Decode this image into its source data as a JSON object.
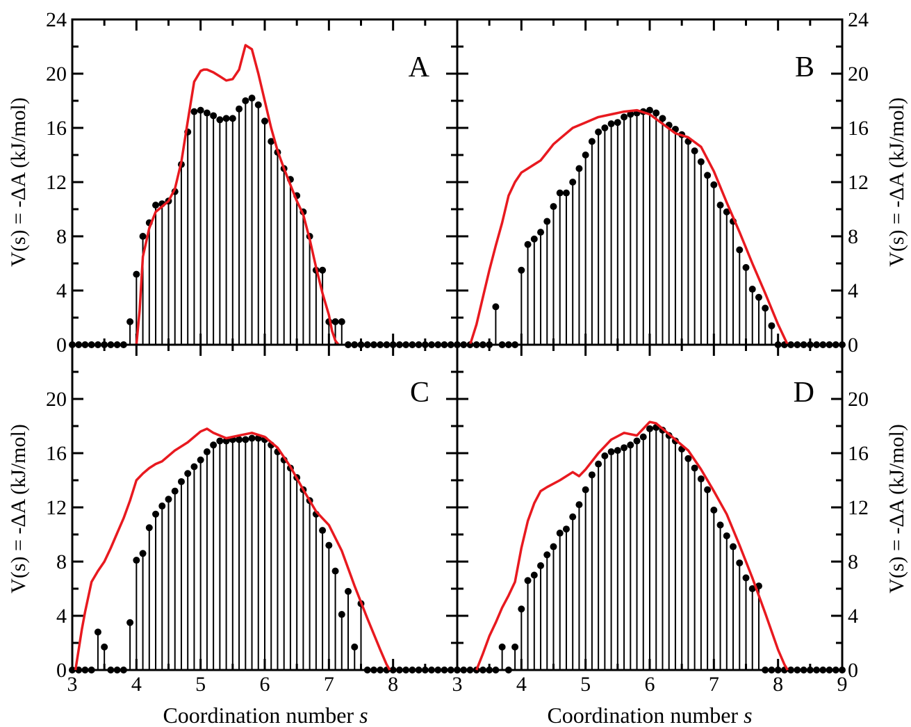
{
  "figure": {
    "y_axis_label": "V(s) = -ΔA (kJ/mol)",
    "x_axis_label_prefix": "Coordination number ",
    "x_axis_label_var": "s",
    "colors": {
      "curve": "#e8191f",
      "markers": "#000000"
    }
  },
  "chart_data": [
    {
      "type": "line",
      "panel": "A",
      "xlim": [
        3,
        9
      ],
      "ylim": [
        0,
        24
      ],
      "x_ticks": [],
      "y_ticks": [
        0,
        4,
        8,
        12,
        16,
        20,
        24
      ],
      "y_axis_side": "left",
      "series": [
        {
          "kind": "stem",
          "x": [
            3.0,
            3.1,
            3.2,
            3.3,
            3.4,
            3.5,
            3.6,
            3.7,
            3.8,
            3.9,
            4.0,
            4.1,
            4.2,
            4.3,
            4.4,
            4.5,
            4.6,
            4.7,
            4.8,
            4.9,
            5.0,
            5.1,
            5.2,
            5.3,
            5.4,
            5.5,
            5.6,
            5.7,
            5.8,
            5.9,
            6.0,
            6.1,
            6.2,
            6.3,
            6.4,
            6.5,
            6.6,
            6.7,
            6.8,
            6.9,
            7.0,
            7.1,
            7.2,
            7.3,
            7.4,
            7.5,
            7.6,
            7.7,
            7.8,
            7.9,
            8.0,
            8.1,
            8.2,
            8.3,
            8.4,
            8.5,
            8.6,
            8.7,
            8.8,
            8.9,
            9.0
          ],
          "y": [
            0,
            0,
            0,
            0,
            0,
            0,
            0,
            0,
            0,
            1.7,
            5.2,
            8.0,
            9.0,
            10.3,
            10.4,
            10.6,
            11.3,
            13.3,
            15.7,
            17.2,
            17.3,
            17.1,
            16.9,
            16.6,
            16.7,
            16.7,
            17.4,
            18.0,
            18.2,
            17.7,
            16.5,
            15.0,
            14.2,
            13.0,
            12.2,
            11.0,
            9.8,
            8.0,
            5.5,
            5.5,
            1.7,
            1.7,
            1.7,
            0,
            0,
            0,
            0,
            0,
            0,
            0,
            0,
            0,
            0,
            0,
            0,
            0,
            0,
            0,
            0,
            0,
            0
          ]
        },
        {
          "kind": "curve",
          "x": [
            4.0,
            4.05,
            4.1,
            4.2,
            4.3,
            4.4,
            4.5,
            4.6,
            4.7,
            4.8,
            4.9,
            5.0,
            5.05,
            5.1,
            5.2,
            5.3,
            5.4,
            5.5,
            5.6,
            5.7,
            5.8,
            5.9,
            6.0,
            6.1,
            6.2,
            6.3,
            6.4,
            6.5,
            6.6,
            6.7,
            6.8,
            6.9,
            7.0,
            7.05,
            7.1,
            7.15
          ],
          "y": [
            0,
            2.5,
            6.5,
            8.6,
            9.8,
            10.2,
            10.6,
            11.5,
            13.5,
            16.5,
            19.4,
            20.2,
            20.3,
            20.3,
            20.1,
            19.8,
            19.5,
            19.6,
            20.3,
            22.1,
            21.8,
            20.0,
            18.0,
            16.0,
            14.3,
            13.0,
            11.8,
            10.6,
            9.6,
            7.8,
            5.7,
            3.8,
            2.2,
            1.0,
            0.3,
            0
          ]
        }
      ]
    },
    {
      "type": "line",
      "panel": "B",
      "xlim": [
        3,
        9
      ],
      "ylim": [
        0,
        24
      ],
      "x_ticks": [],
      "y_ticks": [
        0,
        4,
        8,
        12,
        16,
        20,
        24
      ],
      "y_axis_side": "right",
      "series": [
        {
          "kind": "stem",
          "x": [
            3.0,
            3.1,
            3.2,
            3.3,
            3.4,
            3.5,
            3.6,
            3.7,
            3.8,
            3.9,
            4.0,
            4.1,
            4.2,
            4.3,
            4.4,
            4.5,
            4.6,
            4.7,
            4.8,
            4.9,
            5.0,
            5.1,
            5.2,
            5.3,
            5.4,
            5.5,
            5.6,
            5.7,
            5.8,
            5.9,
            6.0,
            6.1,
            6.2,
            6.3,
            6.4,
            6.5,
            6.6,
            6.7,
            6.8,
            6.9,
            7.0,
            7.1,
            7.2,
            7.3,
            7.4,
            7.5,
            7.6,
            7.7,
            7.8,
            7.9,
            8.0,
            8.1,
            8.2,
            8.3,
            8.4,
            8.5,
            8.6,
            8.7,
            8.8,
            8.9,
            9.0
          ],
          "y": [
            0,
            0,
            0,
            0,
            0,
            0,
            2.8,
            0,
            0,
            0,
            5.5,
            7.4,
            7.8,
            8.3,
            9.1,
            10.2,
            11.2,
            11.2,
            12.0,
            13.0,
            14.0,
            15.0,
            15.7,
            16.0,
            16.3,
            16.4,
            16.8,
            17.0,
            17.1,
            17.2,
            17.3,
            17.1,
            16.7,
            16.2,
            15.9,
            15.5,
            15.0,
            14.3,
            13.5,
            12.5,
            11.8,
            10.3,
            9.8,
            9.1,
            7.0,
            5.7,
            4.1,
            3.5,
            2.7,
            1.4,
            0,
            0,
            0,
            0,
            0,
            0,
            0,
            0,
            0,
            0,
            0
          ]
        },
        {
          "kind": "curve",
          "x": [
            3.2,
            3.3,
            3.4,
            3.5,
            3.6,
            3.7,
            3.8,
            3.9,
            4.0,
            4.1,
            4.2,
            4.3,
            4.4,
            4.5,
            4.6,
            4.8,
            5.0,
            5.2,
            5.4,
            5.6,
            5.8,
            6.0,
            6.2,
            6.4,
            6.6,
            6.8,
            7.0,
            7.2,
            7.4,
            7.6,
            7.8,
            8.0,
            8.1,
            8.15
          ],
          "y": [
            0,
            1.5,
            3.5,
            5.5,
            7.3,
            9.0,
            11.0,
            12.0,
            12.7,
            13.0,
            13.3,
            13.6,
            14.2,
            14.8,
            15.2,
            16.0,
            16.4,
            16.8,
            17.0,
            17.2,
            17.3,
            17.0,
            16.3,
            15.6,
            15.3,
            14.6,
            12.8,
            10.5,
            8.3,
            6.0,
            3.8,
            1.5,
            0.5,
            0
          ]
        }
      ]
    },
    {
      "type": "line",
      "panel": "C",
      "xlim": [
        3,
        9
      ],
      "ylim": [
        0,
        24
      ],
      "x_ticks": [
        3,
        4,
        5,
        6,
        7,
        8
      ],
      "y_ticks": [
        0,
        4,
        8,
        12,
        16,
        20
      ],
      "y_axis_side": "left",
      "series": [
        {
          "kind": "stem",
          "x": [
            3.0,
            3.1,
            3.2,
            3.3,
            3.4,
            3.5,
            3.6,
            3.7,
            3.8,
            3.9,
            4.0,
            4.1,
            4.2,
            4.3,
            4.4,
            4.5,
            4.6,
            4.7,
            4.8,
            4.9,
            5.0,
            5.1,
            5.2,
            5.3,
            5.4,
            5.5,
            5.6,
            5.7,
            5.8,
            5.9,
            6.0,
            6.1,
            6.2,
            6.3,
            6.4,
            6.5,
            6.6,
            6.7,
            6.8,
            6.9,
            7.0,
            7.1,
            7.2,
            7.3,
            7.4,
            7.5,
            7.6,
            7.7,
            7.8,
            7.9,
            8.0,
            8.1,
            8.2,
            8.3,
            8.4,
            8.5,
            8.6,
            8.7,
            8.8,
            8.9,
            9.0
          ],
          "y": [
            0,
            0,
            0,
            0,
            2.8,
            1.7,
            0,
            0,
            0,
            3.5,
            8.1,
            8.6,
            10.5,
            11.5,
            12.1,
            12.6,
            13.2,
            13.9,
            14.5,
            15.0,
            15.5,
            16.1,
            16.6,
            16.9,
            16.9,
            17.0,
            17.0,
            17.0,
            17.1,
            17.1,
            17.0,
            16.6,
            16.1,
            15.5,
            14.9,
            14.2,
            13.3,
            12.5,
            11.5,
            10.3,
            9.2,
            7.3,
            4.1,
            5.8,
            1.7,
            4.9,
            0,
            0,
            0,
            0,
            0,
            0,
            0,
            0,
            0,
            0,
            0,
            0,
            0,
            0,
            0
          ]
        },
        {
          "kind": "curve",
          "x": [
            3.05,
            3.1,
            3.15,
            3.2,
            3.3,
            3.4,
            3.5,
            3.6,
            3.7,
            3.8,
            3.9,
            4.0,
            4.1,
            4.2,
            4.3,
            4.4,
            4.6,
            4.8,
            5.0,
            5.1,
            5.2,
            5.4,
            5.6,
            5.8,
            6.0,
            6.2,
            6.4,
            6.6,
            6.8,
            7.0,
            7.2,
            7.4,
            7.6,
            7.8,
            7.9,
            7.95
          ],
          "y": [
            0,
            1.5,
            3.0,
            4.3,
            6.5,
            7.3,
            8.0,
            9.0,
            10.1,
            11.2,
            12.5,
            14.0,
            14.5,
            14.9,
            15.2,
            15.4,
            16.2,
            16.8,
            17.6,
            17.8,
            17.5,
            17.1,
            17.3,
            17.5,
            17.2,
            16.4,
            15.0,
            13.3,
            11.7,
            10.7,
            8.8,
            6.2,
            3.8,
            1.5,
            0.4,
            0
          ]
        }
      ]
    },
    {
      "type": "line",
      "panel": "D",
      "xlim": [
        3,
        9
      ],
      "ylim": [
        0,
        24
      ],
      "x_ticks": [
        3,
        4,
        5,
        6,
        7,
        8,
        9
      ],
      "y_ticks": [
        0,
        4,
        8,
        12,
        16,
        20
      ],
      "y_axis_side": "right",
      "series": [
        {
          "kind": "stem",
          "x": [
            3.0,
            3.1,
            3.2,
            3.3,
            3.4,
            3.5,
            3.6,
            3.7,
            3.8,
            3.9,
            4.0,
            4.1,
            4.2,
            4.3,
            4.4,
            4.5,
            4.6,
            4.7,
            4.8,
            4.9,
            5.0,
            5.1,
            5.2,
            5.3,
            5.4,
            5.5,
            5.6,
            5.7,
            5.8,
            5.9,
            6.0,
            6.1,
            6.2,
            6.3,
            6.4,
            6.5,
            6.6,
            6.7,
            6.8,
            6.9,
            7.0,
            7.1,
            7.2,
            7.3,
            7.4,
            7.5,
            7.6,
            7.7,
            7.8,
            7.9,
            8.0,
            8.1,
            8.2,
            8.3,
            8.4,
            8.5,
            8.6,
            8.7,
            8.8,
            8.9,
            9.0
          ],
          "y": [
            0,
            0,
            0,
            0,
            0,
            0,
            0,
            1.7,
            0,
            1.7,
            4.5,
            6.6,
            7.0,
            7.7,
            8.5,
            9.1,
            10.1,
            10.4,
            11.3,
            12.2,
            13.3,
            14.4,
            15.2,
            15.8,
            16.1,
            16.2,
            16.4,
            16.6,
            16.9,
            17.2,
            17.8,
            17.9,
            17.7,
            17.3,
            16.9,
            16.3,
            15.6,
            14.9,
            14.1,
            13.3,
            11.8,
            10.7,
            9.9,
            9.1,
            7.9,
            6.8,
            6.0,
            6.2,
            0,
            0,
            0,
            0,
            0,
            0,
            0,
            0,
            0,
            0,
            0,
            0,
            0
          ]
        },
        {
          "kind": "curve",
          "x": [
            3.3,
            3.4,
            3.5,
            3.6,
            3.7,
            3.8,
            3.9,
            4.0,
            4.1,
            4.2,
            4.3,
            4.4,
            4.6,
            4.8,
            4.9,
            5.0,
            5.2,
            5.4,
            5.6,
            5.8,
            6.0,
            6.1,
            6.2,
            6.4,
            6.6,
            6.8,
            7.0,
            7.2,
            7.4,
            7.6,
            7.8,
            8.0,
            8.1,
            8.15
          ],
          "y": [
            0,
            1.2,
            2.5,
            3.5,
            4.6,
            5.5,
            6.5,
            9.0,
            11.0,
            12.3,
            13.2,
            13.5,
            14.0,
            14.6,
            14.3,
            14.8,
            16.0,
            17.0,
            17.5,
            17.3,
            18.3,
            18.2,
            17.8,
            17.0,
            16.2,
            14.8,
            13.2,
            11.5,
            9.2,
            6.8,
            4.2,
            1.5,
            0.4,
            0
          ]
        }
      ]
    }
  ]
}
